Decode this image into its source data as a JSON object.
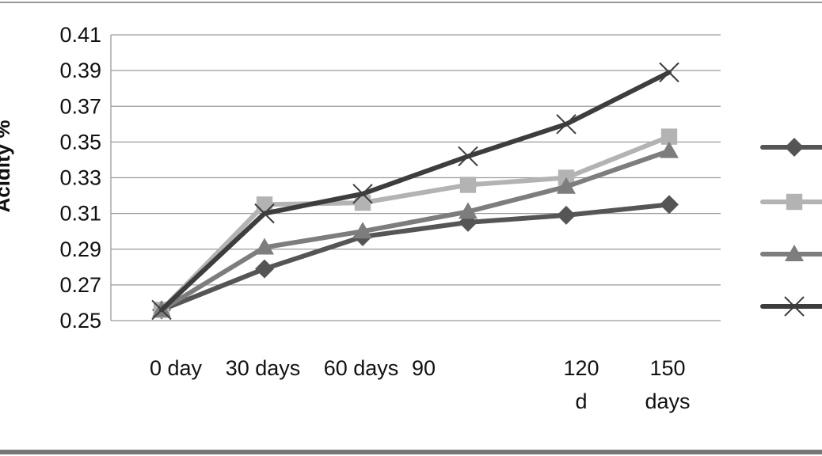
{
  "chart_data": {
    "type": "line",
    "ylabel": "Acidity %",
    "xlabel": "",
    "title": "",
    "categories": [
      "0 day",
      "30 days",
      "60 days",
      "90",
      "120 d",
      "150 days"
    ],
    "x_tick_labels": [
      [
        "0 day"
      ],
      [
        "30 days"
      ],
      [
        "60 days"
      ],
      [
        "90"
      ],
      [
        "120",
        "d"
      ],
      [
        "150",
        "days"
      ]
    ],
    "x_positions": [
      0,
      1,
      2,
      3,
      4,
      5
    ],
    "y_ticks": [
      "0.41",
      "0.39",
      "0.37",
      "0.35",
      "0.33",
      "0.31",
      "0.29",
      "0.27",
      "0.25"
    ],
    "ylim": [
      0.25,
      0.41
    ],
    "grid": true,
    "legend_position": "right",
    "series": [
      {
        "marker": "diamond",
        "color": "#555555",
        "values": [
          0.256,
          0.279,
          0.297,
          0.305,
          0.309,
          0.315
        ]
      },
      {
        "marker": "square",
        "color": "#b3b3b3",
        "values": [
          0.256,
          0.315,
          0.316,
          0.326,
          0.33,
          0.353
        ]
      },
      {
        "marker": "triangle",
        "color": "#7d7d7d",
        "values": [
          0.256,
          0.291,
          0.3,
          0.311,
          0.325,
          0.345
        ]
      },
      {
        "marker": "x",
        "color": "#3d3d3d",
        "values": [
          0.256,
          0.31,
          0.321,
          0.342,
          0.36,
          0.389
        ]
      }
    ]
  }
}
